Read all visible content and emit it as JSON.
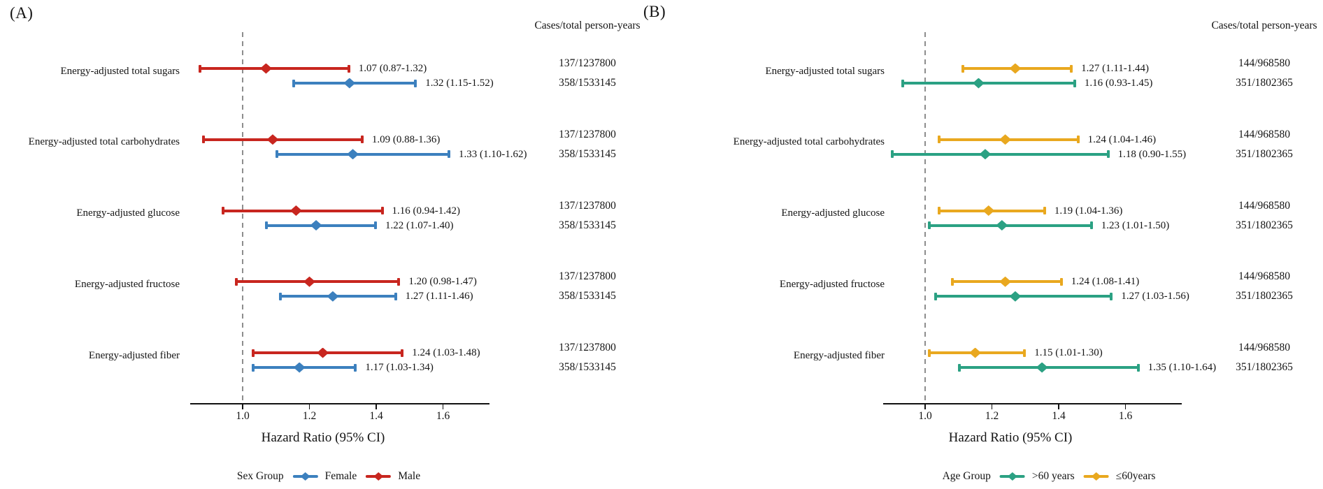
{
  "chart_data": [
    {
      "panel_label": "(A)",
      "type": "scatter",
      "variant": "forest-plot",
      "cases_header": "Cases/total person-years",
      "xlabel": "Hazard Ratio (95% CI)",
      "x_ticks": [
        "1.0",
        "1.2",
        "1.4",
        "1.6"
      ],
      "x_tick_values": [
        1.0,
        1.2,
        1.4,
        1.6
      ],
      "xlim": [
        0.845,
        1.74
      ],
      "reference_line": 1.0,
      "grid": "off",
      "legend_position": "bottom",
      "legend": {
        "title": "Sex Group",
        "entries": [
          {
            "label": "Female",
            "color": "#3C80BE"
          },
          {
            "label": "Male",
            "color": "#C8261F"
          }
        ]
      },
      "categories": [
        "Energy-adjusted total sugars",
        "Energy-adjusted total carbohydrates",
        "Energy-adjusted glucose",
        "Energy-adjusted fructose",
        "Energy-adjusted fiber"
      ],
      "series": [
        {
          "name": "Male",
          "color": "#C8261F",
          "row_position": "upper",
          "points": [
            {
              "hr": 1.07,
              "lo": 0.87,
              "hi": 1.32,
              "label": "1.07 (0.87-1.32)",
              "cases": "137/1237800"
            },
            {
              "hr": 1.09,
              "lo": 0.88,
              "hi": 1.36,
              "label": "1.09 (0.88-1.36)",
              "cases": "137/1237800"
            },
            {
              "hr": 1.16,
              "lo": 0.94,
              "hi": 1.42,
              "label": "1.16 (0.94-1.42)",
              "cases": "137/1237800"
            },
            {
              "hr": 1.2,
              "lo": 0.98,
              "hi": 1.47,
              "label": "1.20 (0.98-1.47)",
              "cases": "137/1237800"
            },
            {
              "hr": 1.24,
              "lo": 1.03,
              "hi": 1.48,
              "label": "1.24 (1.03-1.48)",
              "cases": "137/1237800"
            }
          ]
        },
        {
          "name": "Female",
          "color": "#3C80BE",
          "row_position": "lower",
          "points": [
            {
              "hr": 1.32,
              "lo": 1.15,
              "hi": 1.52,
              "label": "1.32 (1.15-1.52)",
              "cases": "358/1533145"
            },
            {
              "hr": 1.33,
              "lo": 1.1,
              "hi": 1.62,
              "label": "1.33 (1.10-1.62)",
              "cases": "358/1533145"
            },
            {
              "hr": 1.22,
              "lo": 1.07,
              "hi": 1.4,
              "label": "1.22 (1.07-1.40)",
              "cases": "358/1533145"
            },
            {
              "hr": 1.27,
              "lo": 1.11,
              "hi": 1.46,
              "label": "1.27 (1.11-1.46)",
              "cases": "358/1533145"
            },
            {
              "hr": 1.17,
              "lo": 1.03,
              "hi": 1.34,
              "label": "1.17 (1.03-1.34)",
              "cases": "358/1533145"
            }
          ]
        }
      ]
    },
    {
      "panel_label": "(B)",
      "type": "scatter",
      "variant": "forest-plot",
      "cases_header": "Cases/total person-years",
      "xlabel": "Hazard Ratio (95% CI)",
      "x_ticks": [
        "1.0",
        "1.2",
        "1.4",
        "1.6"
      ],
      "x_tick_values": [
        1.0,
        1.2,
        1.4,
        1.6
      ],
      "xlim": [
        0.845,
        1.74
      ],
      "reference_line": 1.0,
      "grid": "off",
      "legend_position": "bottom",
      "legend": {
        "title": "Age Group",
        "entries": [
          {
            "label": ">60 years",
            "color": "#2BA183"
          },
          {
            "label": "≤60years",
            "color": "#E9A81F"
          }
        ]
      },
      "categories": [
        "Energy-adjusted total sugars",
        "Energy-adjusted total carbohydrates",
        "Energy-adjusted glucose",
        "Energy-adjusted fructose",
        "Energy-adjusted fiber"
      ],
      "series": [
        {
          "name": "≤60years",
          "color": "#E9A81F",
          "row_position": "upper",
          "points": [
            {
              "hr": 1.27,
              "lo": 1.11,
              "hi": 1.44,
              "label": "1.27 (1.11-1.44)",
              "cases": "144/968580"
            },
            {
              "hr": 1.24,
              "lo": 1.04,
              "hi": 1.46,
              "label": "1.24 (1.04-1.46)",
              "cases": "144/968580"
            },
            {
              "hr": 1.19,
              "lo": 1.04,
              "hi": 1.36,
              "label": "1.19 (1.04-1.36)",
              "cases": "144/968580"
            },
            {
              "hr": 1.24,
              "lo": 1.08,
              "hi": 1.41,
              "label": "1.24 (1.08-1.41)",
              "cases": "144/968580"
            },
            {
              "hr": 1.15,
              "lo": 1.01,
              "hi": 1.3,
              "label": "1.15 (1.01-1.30)",
              "cases": "144/968580"
            }
          ]
        },
        {
          "name": ">60 years",
          "color": "#2BA183",
          "row_position": "lower",
          "points": [
            {
              "hr": 1.16,
              "lo": 0.93,
              "hi": 1.45,
              "label": "1.16 (0.93-1.45)",
              "cases": "351/1802365"
            },
            {
              "hr": 1.18,
              "lo": 0.9,
              "hi": 1.55,
              "label": "1.18 (0.90-1.55)",
              "cases": "351/1802365"
            },
            {
              "hr": 1.23,
              "lo": 1.01,
              "hi": 1.5,
              "label": "1.23 (1.01-1.50)",
              "cases": "351/1802365"
            },
            {
              "hr": 1.27,
              "lo": 1.03,
              "hi": 1.56,
              "label": "1.27 (1.03-1.56)",
              "cases": "351/1802365"
            },
            {
              "hr": 1.35,
              "lo": 1.1,
              "hi": 1.64,
              "label": "1.35 (1.10-1.64)",
              "cases": "351/1802365"
            }
          ]
        }
      ]
    }
  ],
  "colors": {
    "female_blue": "#3C80BE",
    "male_red": "#C8261F",
    "over60_green": "#2BA183",
    "under60_yellow": "#E9A81F",
    "reference_dash": "#8d8d8d",
    "axis": "#111111"
  }
}
